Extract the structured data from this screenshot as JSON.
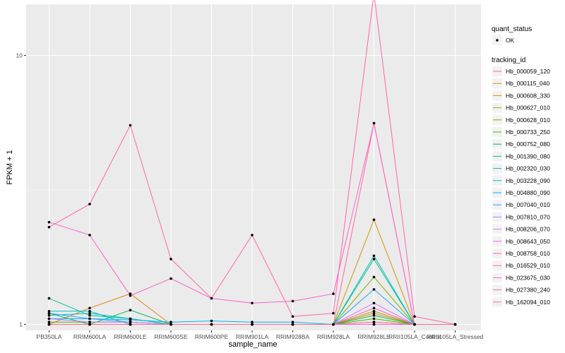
{
  "chart_data": {
    "type": "line",
    "xlabel": "sample_name",
    "ylabel": "FPKM + 1",
    "y_scale": "log10",
    "ylim": [
      0.95,
      15.5
    ],
    "y_ticks": [
      {
        "value": 1,
        "label": "1"
      },
      {
        "value": 10,
        "label": "10"
      }
    ],
    "grid": true,
    "legend_placement": "right",
    "categories": [
      "PB350LA",
      "RRIM600LA",
      "RRIM600LE",
      "RRIM600SE",
      "RRIM600PE",
      "RRIM901LA",
      "RRIM928BA",
      "RRIM928LA",
      "RRIM928LE",
      "RRII105LA_Control",
      "RRII105LA_Stressed"
    ],
    "point_legend": {
      "title": "quant_status",
      "entries": [
        "OK"
      ]
    },
    "series_legend_title": "tracking_id",
    "series": [
      {
        "name": "Hb_000059_120",
        "color": "#F8766D",
        "values": [
          1.0,
          1.0,
          1.0,
          1.0,
          1.0,
          1.0,
          1.0,
          1.0,
          1.02,
          1.0,
          1.0
        ]
      },
      {
        "name": "Hb_000115_040",
        "color": "#E7851E",
        "values": [
          1.0,
          1.15,
          1.3,
          1.0,
          1.0,
          1.0,
          1.0,
          1.0,
          1.1,
          1.0,
          1.0
        ]
      },
      {
        "name": "Hb_000608_330",
        "color": "#D09400",
        "values": [
          1.0,
          1.0,
          1.0,
          1.0,
          1.0,
          1.0,
          1.0,
          1.0,
          2.45,
          1.0,
          1.0
        ]
      },
      {
        "name": "Hb_000627_010",
        "color": "#B2A100",
        "values": [
          1.0,
          1.0,
          1.0,
          1.0,
          1.0,
          1.0,
          1.0,
          1.0,
          1.12,
          1.0,
          1.0
        ]
      },
      {
        "name": "Hb_000628_010",
        "color": "#89AC00",
        "values": [
          1.0,
          1.0,
          1.0,
          1.0,
          1.0,
          1.0,
          1.0,
          1.0,
          1.5,
          1.0,
          1.0
        ]
      },
      {
        "name": "Hb_000733_250",
        "color": "#45B500",
        "values": [
          1.02,
          1.02,
          1.02,
          1.0,
          1.0,
          1.0,
          1.0,
          1.0,
          1.05,
          1.0,
          1.0
        ]
      },
      {
        "name": "Hb_000752_080",
        "color": "#00BC51",
        "values": [
          1.1,
          1.0,
          1.13,
          1.0,
          1.0,
          1.0,
          1.0,
          1.0,
          1.08,
          1.0,
          1.0
        ]
      },
      {
        "name": "Hb_001390_080",
        "color": "#00C087",
        "values": [
          1.25,
          1.08,
          1.05,
          1.0,
          1.0,
          1.0,
          1.0,
          1.0,
          1.75,
          1.0,
          1.0
        ]
      },
      {
        "name": "Hb_002320_030",
        "color": "#00C0B2",
        "values": [
          1.08,
          1.1,
          1.05,
          1.0,
          1.0,
          1.0,
          1.0,
          1.0,
          1.8,
          1.0,
          1.0
        ]
      },
      {
        "name": "Hb_003228_090",
        "color": "#00BCD6",
        "values": [
          1.12,
          1.12,
          1.0,
          1.0,
          1.0,
          1.0,
          1.0,
          1.0,
          1.0,
          1.0,
          1.0
        ]
      },
      {
        "name": "Hb_004880_090",
        "color": "#00B3F2",
        "values": [
          1.05,
          1.05,
          1.04,
          1.02,
          1.03,
          1.02,
          1.02,
          1.0,
          1.0,
          1.0,
          1.0
        ]
      },
      {
        "name": "Hb_007040_010",
        "color": "#29A3FF",
        "values": [
          1.1,
          1.05,
          1.02,
          1.0,
          1.0,
          1.0,
          1.0,
          1.0,
          1.35,
          1.0,
          1.0
        ]
      },
      {
        "name": "Hb_007810_070",
        "color": "#9C8DFF",
        "values": [
          1.0,
          1.0,
          1.0,
          1.0,
          1.0,
          1.0,
          1.0,
          1.0,
          1.0,
          1.0,
          1.0
        ]
      },
      {
        "name": "Hb_008206_070",
        "color": "#D277FF",
        "values": [
          1.05,
          1.02,
          1.02,
          1.0,
          1.0,
          1.0,
          1.0,
          1.0,
          1.2,
          1.0,
          1.0
        ]
      },
      {
        "name": "Hb_008643_050",
        "color": "#F166E8",
        "values": [
          1.0,
          1.0,
          1.0,
          1.0,
          1.0,
          1.0,
          1.0,
          1.0,
          1.0,
          1.0,
          1.0
        ]
      },
      {
        "name": "Hb_008758_010",
        "color": "#FF61C7",
        "values": [
          1.0,
          1.0,
          1.0,
          1.0,
          1.0,
          1.0,
          1.0,
          1.0,
          1.15,
          1.0,
          1.0
        ]
      },
      {
        "name": "Hb_016529_010",
        "color": "#FF689E",
        "values": [
          1.0,
          1.0,
          1.0,
          1.0,
          1.0,
          1.0,
          1.0,
          1.0,
          5.6,
          1.0,
          1.0
        ]
      },
      {
        "name": "Hb_023675_030",
        "color": "#FF61C9",
        "values": [
          2.4,
          2.15,
          1.28,
          1.48,
          1.25,
          1.2,
          1.22,
          1.3,
          5.6,
          1.0,
          1.0
        ]
      },
      {
        "name": "Hb_027380_240",
        "color": "#FF66A8",
        "values": [
          2.3,
          2.8,
          5.5,
          1.75,
          1.25,
          2.15,
          1.07,
          1.1,
          17.0,
          1.07,
          1.0
        ]
      },
      {
        "name": "Hb_162094_010",
        "color": "#FF6C91",
        "values": [
          1.0,
          1.0,
          1.0,
          1.0,
          1.0,
          1.0,
          1.0,
          1.0,
          1.02,
          1.0,
          1.0
        ]
      }
    ]
  }
}
